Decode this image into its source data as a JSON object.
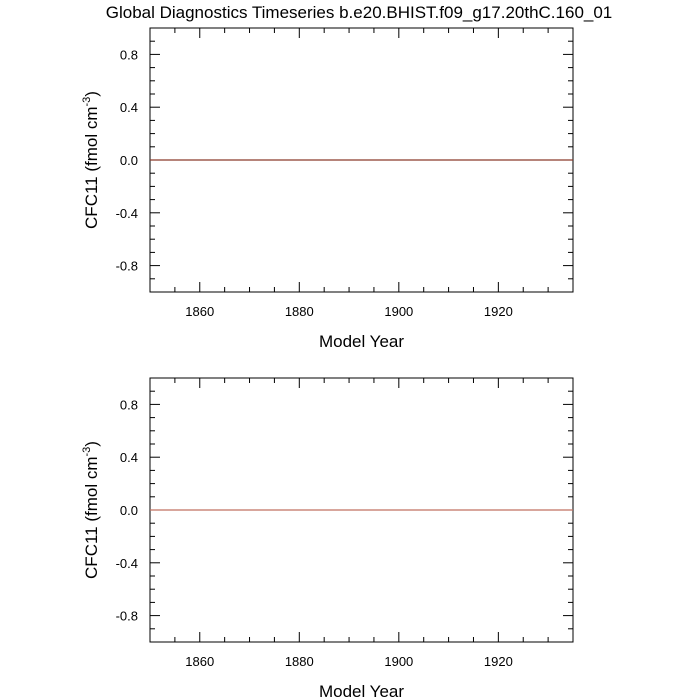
{
  "title": "Global Diagnostics Timeseries b.e20.BHIST.f09_g17.20thC.160_01",
  "chart_data": [
    {
      "type": "line",
      "xlabel": "Model Year",
      "ylabel_main": "CFC11 (fmol cm",
      "ylabel_sup": "-3",
      "ylabel_tail": ")",
      "xlim": [
        1850,
        1935
      ],
      "ylim": [
        -1,
        1
      ],
      "xticks": [
        1860,
        1880,
        1900,
        1920
      ],
      "xtick_labels": [
        "1860",
        "1880",
        "1900",
        "1920"
      ],
      "yticks": [
        -0.8,
        -0.4,
        0.0,
        0.4,
        0.8
      ],
      "ytick_labels": [
        "-0.8",
        "-0.4",
        "0.0",
        "0.4",
        "0.8"
      ],
      "reference_line": 0,
      "line_color": "#8b3a2a",
      "series": [
        {
          "x": [
            1850,
            1935
          ],
          "y": [
            0,
            0
          ]
        }
      ]
    },
    {
      "type": "line",
      "xlabel": "Model Year",
      "ylabel_main": "CFC11 (fmol cm",
      "ylabel_sup": "-3",
      "ylabel_tail": ")",
      "xlim": [
        1850,
        1935
      ],
      "ylim": [
        -1,
        1
      ],
      "xticks": [
        1860,
        1880,
        1900,
        1920
      ],
      "xtick_labels": [
        "1860",
        "1880",
        "1900",
        "1920"
      ],
      "yticks": [
        -0.8,
        -0.4,
        0.0,
        0.4,
        0.8
      ],
      "ytick_labels": [
        "-0.8",
        "-0.4",
        "0.0",
        "0.4",
        "0.8"
      ],
      "reference_line": 0,
      "line_color": "#c07060",
      "series": [
        {
          "x": [
            1850,
            1935
          ],
          "y": [
            0,
            0
          ]
        }
      ]
    }
  ]
}
